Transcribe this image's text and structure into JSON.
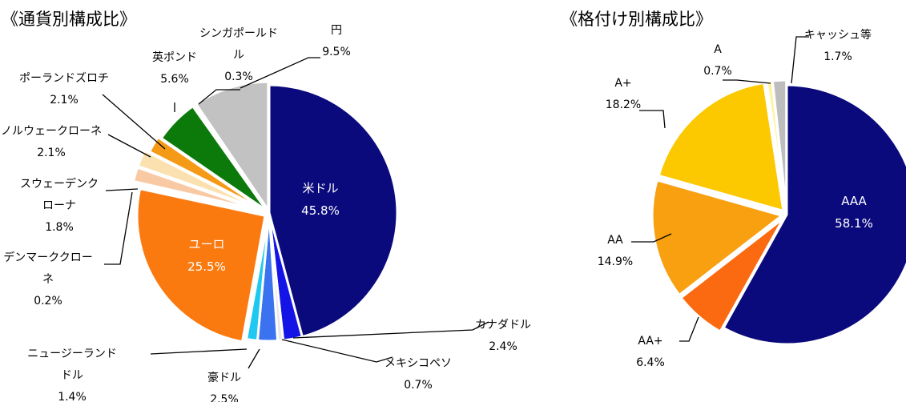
{
  "chart_data": [
    {
      "type": "pie",
      "title": "《通貨別構成比》",
      "slices": [
        {
          "name": "米ドル",
          "lines": [
            "米ドル"
          ],
          "value": 45.8,
          "color": "#0a0a7d"
        },
        {
          "name": "カナダドル",
          "lines": [
            "カナダドル"
          ],
          "value": 2.4,
          "color": "#1414e6"
        },
        {
          "name": "メキシコペソ",
          "lines": [
            "メキシコペソ"
          ],
          "value": 0.7,
          "color": "#e8e8e8"
        },
        {
          "name": "豪ドル",
          "lines": [
            "豪ドル"
          ],
          "value": 2.5,
          "color": "#3a72f0"
        },
        {
          "name": "ニュージーランドドル",
          "lines": [
            "ニュージーランド",
            "ドル"
          ],
          "value": 1.4,
          "color": "#1ec8f0"
        },
        {
          "name": "ユーロ",
          "lines": [
            "ユーロ"
          ],
          "value": 25.5,
          "color": "#fb7a10"
        },
        {
          "name": "デンマーククローネ",
          "lines": [
            "デンマーククロー",
            "ネ"
          ],
          "value": 0.2,
          "color": "#d0d0d0"
        },
        {
          "name": "スウェーデンクローナ",
          "lines": [
            "スウェーデンク",
            "ローナ"
          ],
          "value": 1.8,
          "color": "#f9c9a4"
        },
        {
          "name": "ノルウェークローネ",
          "lines": [
            "ノルウェークローネ"
          ],
          "value": 2.1,
          "color": "#fbe1b0"
        },
        {
          "name": "ポーランドズロチ",
          "lines": [
            "ポーランドズロチ"
          ],
          "value": 2.1,
          "color": "#f59a16"
        },
        {
          "name": "英ポンド",
          "lines": [
            "英ポンド"
          ],
          "value": 5.6,
          "color": "#0b7a0b"
        },
        {
          "name": "シンガポールドル",
          "lines": [
            "シンガポールド",
            "ル"
          ],
          "value": 0.3,
          "color": "#c8c8c8"
        },
        {
          "name": "円",
          "lines": [
            "円"
          ],
          "value": 9.5,
          "color": "#c2c2c2"
        }
      ],
      "value_labels": [
        "45.8%",
        "2.4%",
        "0.7%",
        "2.5%",
        "1.4%",
        "25.5%",
        "0.2%",
        "1.8%",
        "2.1%",
        "2.1%",
        "5.6%",
        "0.3%",
        "9.5%"
      ]
    },
    {
      "type": "pie",
      "title": "《格付け別構成比》",
      "slices": [
        {
          "name": "AAA",
          "lines": [
            "AAA"
          ],
          "value": 58.1,
          "color": "#0a0a7d"
        },
        {
          "name": "AA+",
          "lines": [
            "AA+"
          ],
          "value": 6.4,
          "color": "#fb6a10"
        },
        {
          "name": "AA",
          "lines": [
            "AA"
          ],
          "value": 14.9,
          "color": "#f8a010"
        },
        {
          "name": "A+",
          "lines": [
            "A+"
          ],
          "value": 18.2,
          "color": "#fcc800"
        },
        {
          "name": "A",
          "lines": [
            "A"
          ],
          "value": 0.7,
          "color": "#fff2a0"
        },
        {
          "name": "キャッシュ等",
          "lines": [
            "キャッシュ等"
          ],
          "value": 1.7,
          "color": "#bdbdbd"
        }
      ],
      "value_labels": [
        "58.1%",
        "6.4%",
        "14.9%",
        "18.2%",
        "0.7%",
        "1.7%"
      ]
    }
  ]
}
